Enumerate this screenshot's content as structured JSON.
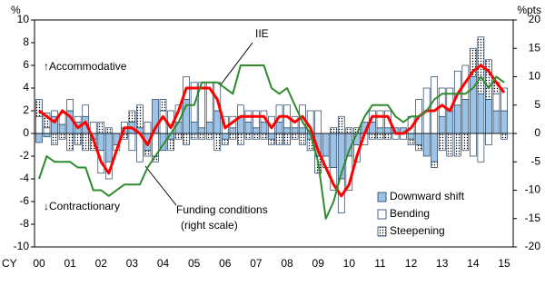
{
  "chart_data": {
    "type": "bar",
    "y_label": "%",
    "y2_label": "%pts",
    "x_label": "CY",
    "annotations": {
      "accommodative": "↑Accommodative",
      "contractionary": "↓Contractionary",
      "right_scale": "(right scale)"
    },
    "categories": [
      "00",
      null,
      null,
      null,
      "01",
      null,
      null,
      null,
      "02",
      null,
      null,
      null,
      "03",
      null,
      null,
      null,
      "04",
      null,
      null,
      null,
      "05",
      null,
      null,
      null,
      "06",
      null,
      null,
      null,
      "07",
      null,
      null,
      null,
      "08",
      null,
      null,
      null,
      "09",
      null,
      null,
      null,
      "10",
      null,
      null,
      null,
      "11",
      null,
      null,
      null,
      "12",
      null,
      null,
      null,
      "13",
      null,
      null,
      null,
      "14",
      null,
      null,
      null,
      "15"
    ],
    "ylim": [
      -10,
      10
    ],
    "yticks": [
      -10,
      -8,
      -6,
      -4,
      -2,
      0,
      2,
      4,
      6,
      8,
      10
    ],
    "y2lim": [
      -20,
      20
    ],
    "y2ticks": [
      -20,
      -15,
      -10,
      -5,
      0,
      5,
      10,
      15,
      20
    ],
    "legend": "bottom-right",
    "series": [
      {
        "name": "Downward shift",
        "type": "bar",
        "color": "#9dc3e6",
        "values": [
          -0.8,
          -0.3,
          1.5,
          0.8,
          2.0,
          1.0,
          1.5,
          -0.5,
          -1.5,
          -2.5,
          -1.0,
          0.5,
          1.0,
          0.5,
          -1.5,
          3.0,
          -1.5,
          -0.5,
          1.0,
          3.0,
          1.0,
          0.5,
          1.0,
          2.0,
          -0.5,
          0.5,
          1.5,
          1.0,
          0.5,
          1.0,
          -0.5,
          1.0,
          0.5,
          0.5,
          0.5,
          -0.5,
          -2.0,
          -2.0,
          -3.0,
          -4.0,
          -2.0,
          -1.0,
          1.0,
          1.0,
          0.5,
          0.5,
          0.5,
          0.5,
          -0.5,
          -1.0,
          -2.0,
          -2.5,
          1.5,
          2.0,
          2.5,
          3.0,
          5.0,
          3.5,
          3.0,
          2.0,
          2.0
        ]
      },
      {
        "name": "Bending",
        "type": "bar",
        "color": "#ffffff",
        "values": [
          1.5,
          0.5,
          0.5,
          1.0,
          1.0,
          0.5,
          1.0,
          1.0,
          -2.0,
          -1.5,
          -0.5,
          0.5,
          -1.5,
          -2.5,
          1.0,
          -2.0,
          2.0,
          2.0,
          1.5,
          2.0,
          3.5,
          4.0,
          3.5,
          2.5,
          1.5,
          1.0,
          1.0,
          1.0,
          1.5,
          1.0,
          1.5,
          1.5,
          2.0,
          1.0,
          2.0,
          2.0,
          2.0,
          -1.0,
          -2.0,
          -3.0,
          -3.0,
          -1.5,
          -1.0,
          1.0,
          1.5,
          1.5,
          -0.5,
          -0.5,
          1.5,
          3.0,
          4.0,
          5.0,
          2.5,
          2.0,
          3.0,
          3.0,
          -2.0,
          -2.5,
          -1.0,
          1.5,
          2.0
        ]
      },
      {
        "name": "Steepening",
        "type": "bar",
        "color": "#ffffff",
        "values": [
          1.5,
          1.3,
          -1.0,
          -0.5,
          -1.5,
          -1.0,
          -1.5,
          -1.0,
          1.0,
          0.5,
          0,
          -0.5,
          1.0,
          2.0,
          -0.5,
          -0.5,
          1.0,
          -1.0,
          -0.5,
          -1.0,
          -0.5,
          -0.5,
          -0.5,
          -1.5,
          -0.5,
          -0.5,
          -1.0,
          -0.5,
          -0.5,
          -0.5,
          -0.5,
          -1.0,
          -1.0,
          -0.5,
          -1.0,
          -1.0,
          -1.5,
          0,
          0.5,
          1.5,
          0.5,
          0.5,
          0,
          -0.5,
          -0.5,
          -0.5,
          0,
          0,
          -0.5,
          -0.5,
          0,
          -0.5,
          -1.5,
          -2.0,
          -2.0,
          -1.5,
          2.5,
          5.0,
          3.5,
          1.0,
          -0.5
        ]
      },
      {
        "name": "IIE",
        "type": "line",
        "color": "#ff0000",
        "values": [
          2.0,
          1.5,
          1.0,
          2.0,
          1.5,
          0.5,
          1.0,
          -0.5,
          -2.5,
          -3.5,
          -1.5,
          0.5,
          0.5,
          0,
          -1.0,
          0.5,
          1.5,
          0.5,
          2.0,
          4.0,
          4.0,
          4.0,
          4.0,
          3.0,
          0.5,
          1.0,
          1.5,
          1.5,
          1.5,
          1.5,
          0.5,
          1.5,
          1.5,
          1.0,
          1.5,
          0.5,
          -1.5,
          -3.0,
          -4.5,
          -5.5,
          -4.5,
          -2.0,
          0,
          1.5,
          1.5,
          1.5,
          0,
          0,
          0.5,
          1.5,
          2.0,
          2.0,
          2.5,
          2.0,
          3.5,
          4.5,
          5.5,
          6.0,
          5.5,
          4.5,
          3.6
        ]
      },
      {
        "name": "Funding conditions",
        "type": "line",
        "axis": "y2",
        "color": "#2e8b2e",
        "values": [
          -8,
          -4,
          -5,
          -5,
          -5,
          -6,
          -6,
          -10,
          -10,
          -11,
          -10,
          -9,
          -9,
          -9,
          -6,
          -4,
          -2,
          0,
          2,
          5,
          5,
          9,
          9,
          9,
          8,
          7,
          12,
          12,
          12,
          12,
          8,
          7,
          8,
          5,
          2,
          0,
          -5,
          -15,
          -12,
          -7,
          -3,
          0,
          3,
          5,
          5,
          5,
          3,
          2,
          3,
          3,
          4,
          6,
          7,
          7,
          7,
          7,
          8,
          10,
          8,
          10,
          9
        ]
      }
    ]
  }
}
